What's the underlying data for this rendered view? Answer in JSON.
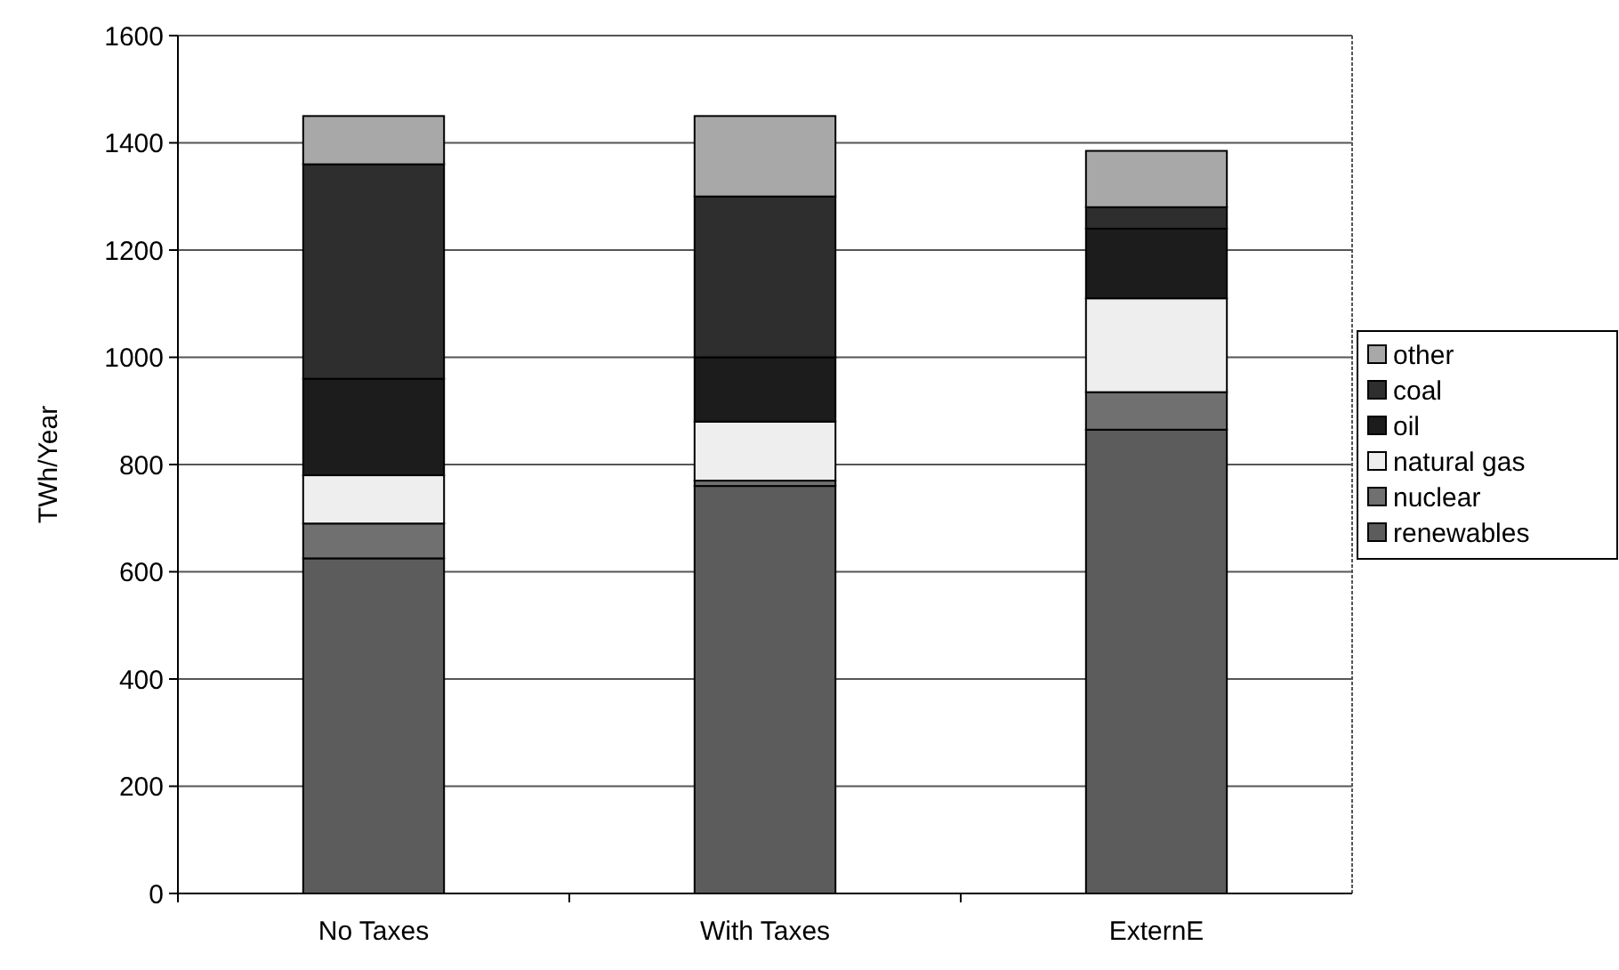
{
  "chart_data": {
    "type": "bar",
    "stacked": true,
    "ylabel": "TWh/Year",
    "categories": [
      "No Taxes",
      "With Taxes",
      "ExternE"
    ],
    "series": [
      {
        "name": "renewables",
        "color": "#5c5c5c",
        "values": [
          625,
          760,
          865
        ]
      },
      {
        "name": "nuclear",
        "color": "#707070",
        "values": [
          65,
          10,
          70
        ]
      },
      {
        "name": "natural gas",
        "color": "#eeeeee",
        "values": [
          90,
          110,
          175
        ]
      },
      {
        "name": "oil",
        "color": "#1c1c1c",
        "values": [
          180,
          120,
          130
        ]
      },
      {
        "name": "coal",
        "color": "#2e2e2e",
        "values": [
          400,
          300,
          40
        ]
      },
      {
        "name": "other",
        "color": "#a8a8a8",
        "values": [
          90,
          150,
          105
        ]
      }
    ],
    "ylim": [
      0,
      1600
    ],
    "yticks": [
      0,
      200,
      400,
      600,
      800,
      1000,
      1200,
      1400,
      1600
    ],
    "grid": "y",
    "legend": "right"
  }
}
